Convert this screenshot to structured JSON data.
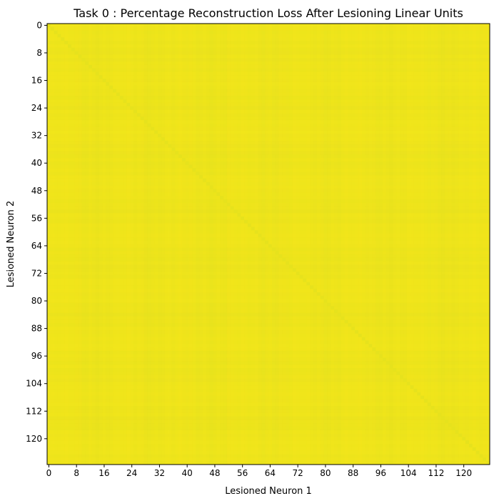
{
  "chart_data": {
    "type": "heatmap",
    "title": "Task 0 : Percentage Reconstruction Loss After Lesioning Linear Units",
    "xlabel": "Lesioned Neuron 1",
    "ylabel": "Lesioned Neuron 2",
    "n_rows": 128,
    "n_cols": 128,
    "x_ticks": [
      "0",
      "8",
      "16",
      "24",
      "32",
      "40",
      "48",
      "56",
      "64",
      "72",
      "80",
      "88",
      "96",
      "104",
      "112",
      "120"
    ],
    "y_ticks": [
      "0",
      "8",
      "16",
      "24",
      "32",
      "40",
      "48",
      "56",
      "64",
      "72",
      "80",
      "88",
      "96",
      "104",
      "112",
      "120"
    ],
    "colormap": "viridis",
    "fill_color": "#efe51c",
    "diagonal_color": "#e6e21d",
    "grid": false,
    "colorbar": false
  }
}
